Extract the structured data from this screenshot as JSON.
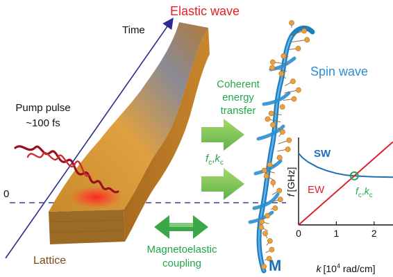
{
  "labels": {
    "elastic_wave": "Elastic wave",
    "time": "Time",
    "spin_wave": "Spin wave",
    "pump_pulse_line1": "Pump pulse",
    "pump_pulse_line2": "~100 fs",
    "coherent_line1": "Coherent",
    "coherent_line2": "energy",
    "coherent_line3": "transfer",
    "zero": "0",
    "lattice": "Lattice",
    "magnetoelastic_line1": "Magnetoelastic",
    "magnetoelastic_line2": "coupling",
    "magnetization": "M",
    "fc_f": "f",
    "fc_c": "c",
    "kc_sep": ",",
    "kc_k": "k",
    "kc_c": "c"
  },
  "colors": {
    "elastic_wave": "#e8202a",
    "spin_wave": "#2a8fd0",
    "coupling_green": "#22a64a",
    "lattice_text": "#7a4a14",
    "axis_blue": "#2a2a90"
  },
  "chart_data": {
    "type": "line",
    "xlabel_symbol": "k",
    "xlabel_unit_pre": "[10",
    "xlabel_unit_exp": "4",
    "xlabel_unit_post": " rad/cm]",
    "ylabel_symbol": "f",
    "ylabel_unit": "[GHz]",
    "x_ticks": [
      "0",
      "1",
      "2"
    ],
    "xlim": [
      0,
      2.5
    ],
    "series": [
      {
        "name": "SW",
        "color": "#1f6fb8",
        "x": [
          0,
          0.1,
          0.25,
          0.5,
          0.75,
          1.0,
          1.25,
          1.5,
          1.75,
          2.0,
          2.25,
          2.5
        ],
        "y": [
          0.82,
          0.77,
          0.72,
          0.66,
          0.62,
          0.59,
          0.57,
          0.56,
          0.555,
          0.55,
          0.548,
          0.545
        ]
      },
      {
        "name": "EW",
        "color": "#e02030",
        "x": [
          0,
          2.5
        ],
        "y": [
          0,
          0.95
        ]
      }
    ],
    "crossing_label_f": "f",
    "crossing_label_sub1": "c",
    "crossing_label_sep": ",",
    "crossing_label_k": "k",
    "crossing_label_sub2": "c"
  }
}
